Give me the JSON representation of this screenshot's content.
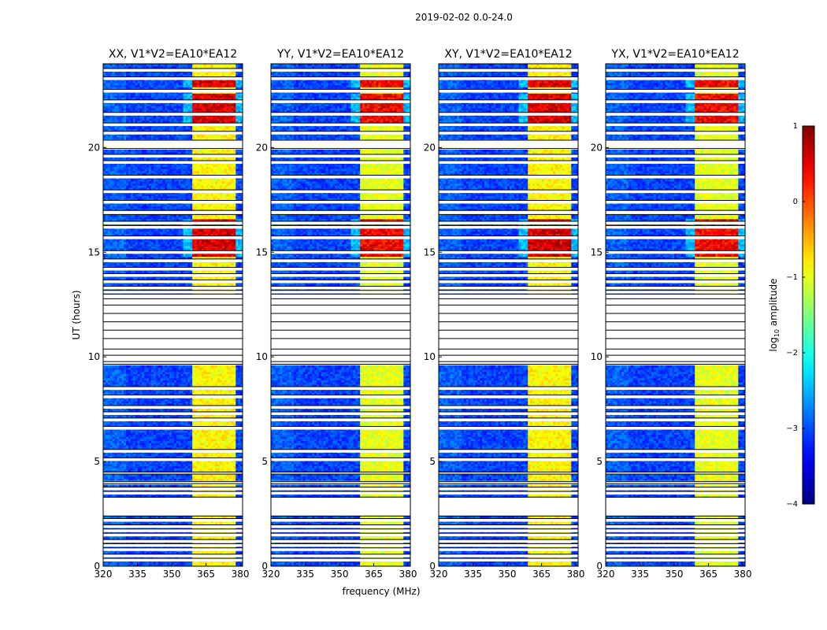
{
  "figure": {
    "suptitle": "2019-02-02 0.0-24.0",
    "xlabel": "frequency (MHz)",
    "ylabel": "UT (hours)",
    "colorbar_label": "log10 amplitude"
  },
  "chart_data": {
    "type": "heatmap",
    "description_units": "frequency in MHz, time in UT hours, colour = log10 amplitude",
    "xlim": [
      320,
      381
    ],
    "ylim": [
      0,
      24
    ],
    "xticks": [
      320,
      335,
      350,
      365,
      380
    ],
    "yticks": [
      0,
      5,
      10,
      15,
      20
    ],
    "colorscale": {
      "name": "jet",
      "min": -4,
      "max": 1,
      "ticks": [
        1,
        0,
        -1,
        -2,
        -3,
        -4
      ]
    },
    "panels": [
      {
        "title": "XX, V1*V2=EA10*EA12",
        "pol": "XX"
      },
      {
        "title": "YY, V1*V2=EA10*EA12",
        "pol": "YY"
      },
      {
        "title": "XY, V1*V2=EA10*EA12",
        "pol": "XY"
      },
      {
        "title": "YX, V1*V2=EA10*EA12",
        "pol": "YX"
      }
    ],
    "signal_band_mhz": [
      359,
      378
    ],
    "signal_subbands_mhz": [
      [
        359,
        363.5
      ],
      [
        364.5,
        368.5
      ],
      [
        369.5,
        373.5
      ],
      [
        374.5,
        378.5
      ]
    ],
    "data_gaps_hours": [
      [
        2.4,
        3.3
      ],
      [
        3.95,
        4.05
      ],
      [
        4.4,
        4.5
      ],
      [
        9.65,
        13.0
      ],
      [
        19.95,
        20.35
      ],
      [
        16.8,
        17.0
      ]
    ],
    "strong_rfi_hours": [
      [
        14.8,
        16.6
      ],
      [
        21.2,
        22.6
      ],
      [
        22.9,
        23.4
      ]
    ],
    "flag_lines_hours": [
      0.3,
      0.5,
      0.8,
      1.0,
      1.2,
      1.5,
      1.7,
      1.9,
      2.2,
      3.5,
      3.7,
      5.1,
      5.5,
      6.6,
      7.0,
      7.3,
      7.6,
      8.1,
      8.5,
      9.7,
      10.0,
      10.3,
      10.8,
      11.2,
      11.6,
      12.0,
      12.4,
      12.7,
      13.1,
      13.3,
      13.6,
      13.9,
      14.2,
      14.6,
      15.0,
      15.7,
      16.2,
      16.4,
      17.4,
      17.9,
      18.6,
      19.3,
      19.6,
      20.7,
      21.1,
      21.6,
      22.2,
      22.7,
      23.3,
      23.7
    ]
  }
}
